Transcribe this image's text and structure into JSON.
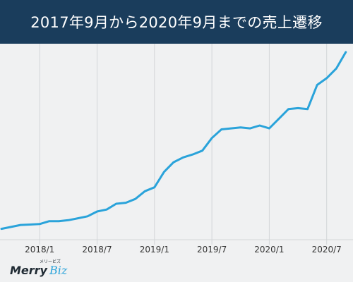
{
  "chart_data": {
    "type": "line",
    "title": "2017年9月から2020年9月までの売上遷移",
    "xlabel": "",
    "ylabel": "",
    "x": [
      "2017/9",
      "2017/10",
      "2017/11",
      "2017/12",
      "2018/1",
      "2018/2",
      "2018/3",
      "2018/4",
      "2018/5",
      "2018/6",
      "2018/7",
      "2018/8",
      "2018/9",
      "2018/10",
      "2018/11",
      "2018/12",
      "2019/1",
      "2019/2",
      "2019/3",
      "2019/4",
      "2019/5",
      "2019/6",
      "2019/7",
      "2019/8",
      "2019/9",
      "2019/10",
      "2019/11",
      "2019/12",
      "2020/1",
      "2020/2",
      "2020/3",
      "2020/4",
      "2020/5",
      "2020/6",
      "2020/7",
      "2020/8",
      "2020/9"
    ],
    "tick_labels": [
      "2018/1",
      "2018/7",
      "2019/1",
      "2019/7",
      "2020/1",
      "2020/7"
    ],
    "tick_positions": [
      "2018/1",
      "2018/7",
      "2019/1",
      "2019/7",
      "2020/1",
      "2020/7"
    ],
    "series": [
      {
        "values": [
          1,
          3,
          5,
          5.5,
          6,
          9,
          9,
          10,
          12,
          14,
          19,
          21,
          27,
          28,
          32,
          40,
          44,
          60,
          70,
          75,
          78,
          82,
          95,
          104,
          105,
          106,
          105,
          108,
          105,
          115,
          125,
          126,
          125,
          150,
          157,
          167,
          184
        ]
      }
    ],
    "ylim": [
      0,
      190
    ],
    "grid": "vertical",
    "legend": "none",
    "colors": {
      "line": "#2aa3da",
      "grid": "#d3d6d8",
      "header": "#1a3d5c",
      "background": "#f0f1f2"
    }
  },
  "logo": {
    "brand_main": "Merry",
    "brand_sub": "Biz",
    "brand_kana": "メリービズ"
  }
}
